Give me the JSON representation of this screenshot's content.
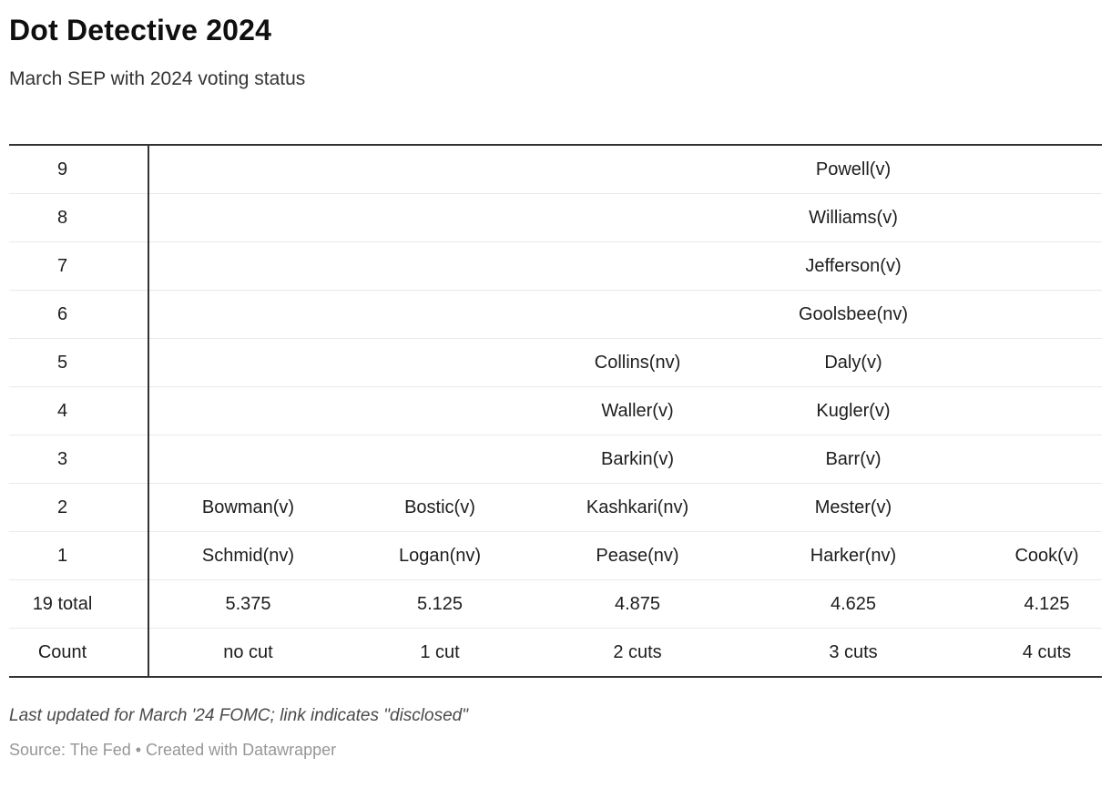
{
  "header": {
    "title": "Dot Detective 2024",
    "subtitle": "March SEP with 2024 voting status"
  },
  "chart_data": {
    "type": "table",
    "title": "Dot Detective 2024",
    "subtitle": "March SEP with 2024 voting status",
    "categories": [
      "no cut",
      "1 cut",
      "2 cuts",
      "3 cuts",
      "4 cuts"
    ],
    "end_2024_rates": [
      5.375,
      5.125,
      4.875,
      4.625,
      4.125
    ],
    "dot_counts": [
      2,
      2,
      5,
      9,
      1
    ],
    "total_row_label": "19 total",
    "count_row_label": "Count",
    "dot_axis_values": [
      9,
      8,
      7,
      6,
      5,
      4,
      3,
      2,
      1
    ],
    "series": [
      {
        "name": "no cut",
        "rate": 5.375,
        "members": [
          "Bowman(v)",
          "Schmid(nv)"
        ]
      },
      {
        "name": "1 cut",
        "rate": 5.125,
        "members": [
          "Bostic(v)",
          "Logan(nv)"
        ]
      },
      {
        "name": "2 cuts",
        "rate": 4.875,
        "members": [
          "Collins(nv)",
          "Waller(v)",
          "Barkin(v)",
          "Kashkari(nv)",
          "Pease(nv)"
        ]
      },
      {
        "name": "3 cuts",
        "rate": 4.625,
        "members": [
          "Powell(v)",
          "Williams(v)",
          "Jefferson(v)",
          "Goolsbee(nv)",
          "Daly(v)",
          "Kugler(v)",
          "Barr(v)",
          "Mester(v)",
          "Harker(nv)"
        ]
      },
      {
        "name": "4 cuts",
        "rate": 4.125,
        "members": [
          "Cook(v)"
        ]
      }
    ]
  },
  "table": {
    "rows": [
      {
        "label": "9",
        "cells": [
          "",
          "",
          "",
          "Powell(v)",
          ""
        ]
      },
      {
        "label": "8",
        "cells": [
          "",
          "",
          "",
          "Williams(v)",
          ""
        ]
      },
      {
        "label": "7",
        "cells": [
          "",
          "",
          "",
          "Jefferson(v)",
          ""
        ]
      },
      {
        "label": "6",
        "cells": [
          "",
          "",
          "",
          "Goolsbee(nv)",
          ""
        ]
      },
      {
        "label": "5",
        "cells": [
          "",
          "",
          "Collins(nv)",
          "Daly(v)",
          ""
        ]
      },
      {
        "label": "4",
        "cells": [
          "",
          "",
          "Waller(v)",
          "Kugler(v)",
          ""
        ]
      },
      {
        "label": "3",
        "cells": [
          "",
          "",
          "Barkin(v)",
          "Barr(v)",
          ""
        ]
      },
      {
        "label": "2",
        "cells": [
          "Bowman(v)",
          "Bostic(v)",
          "Kashkari(nv)",
          "Mester(v)",
          ""
        ]
      },
      {
        "label": "1",
        "cells": [
          "Schmid(nv)",
          "Logan(nv)",
          "Pease(nv)",
          "Harker(nv)",
          "Cook(v)"
        ]
      },
      {
        "label": "19 total",
        "cells": [
          "5.375",
          "5.125",
          "4.875",
          "4.625",
          "4.125"
        ]
      },
      {
        "label": "Count",
        "cells": [
          "no cut",
          "1 cut",
          "2 cuts",
          "3 cuts",
          "4 cuts"
        ]
      }
    ]
  },
  "footer": {
    "note": "Last updated for March '24 FOMC; link indicates \"disclosed\"",
    "source": "Source: The Fed • Created with Datawrapper"
  },
  "colors": {
    "text": "#1d1d1d",
    "border_dark": "#333333",
    "row_separator": "#e9e9e9",
    "footer_note": "#494949",
    "footer_source": "#979797",
    "background": "#ffffff"
  }
}
